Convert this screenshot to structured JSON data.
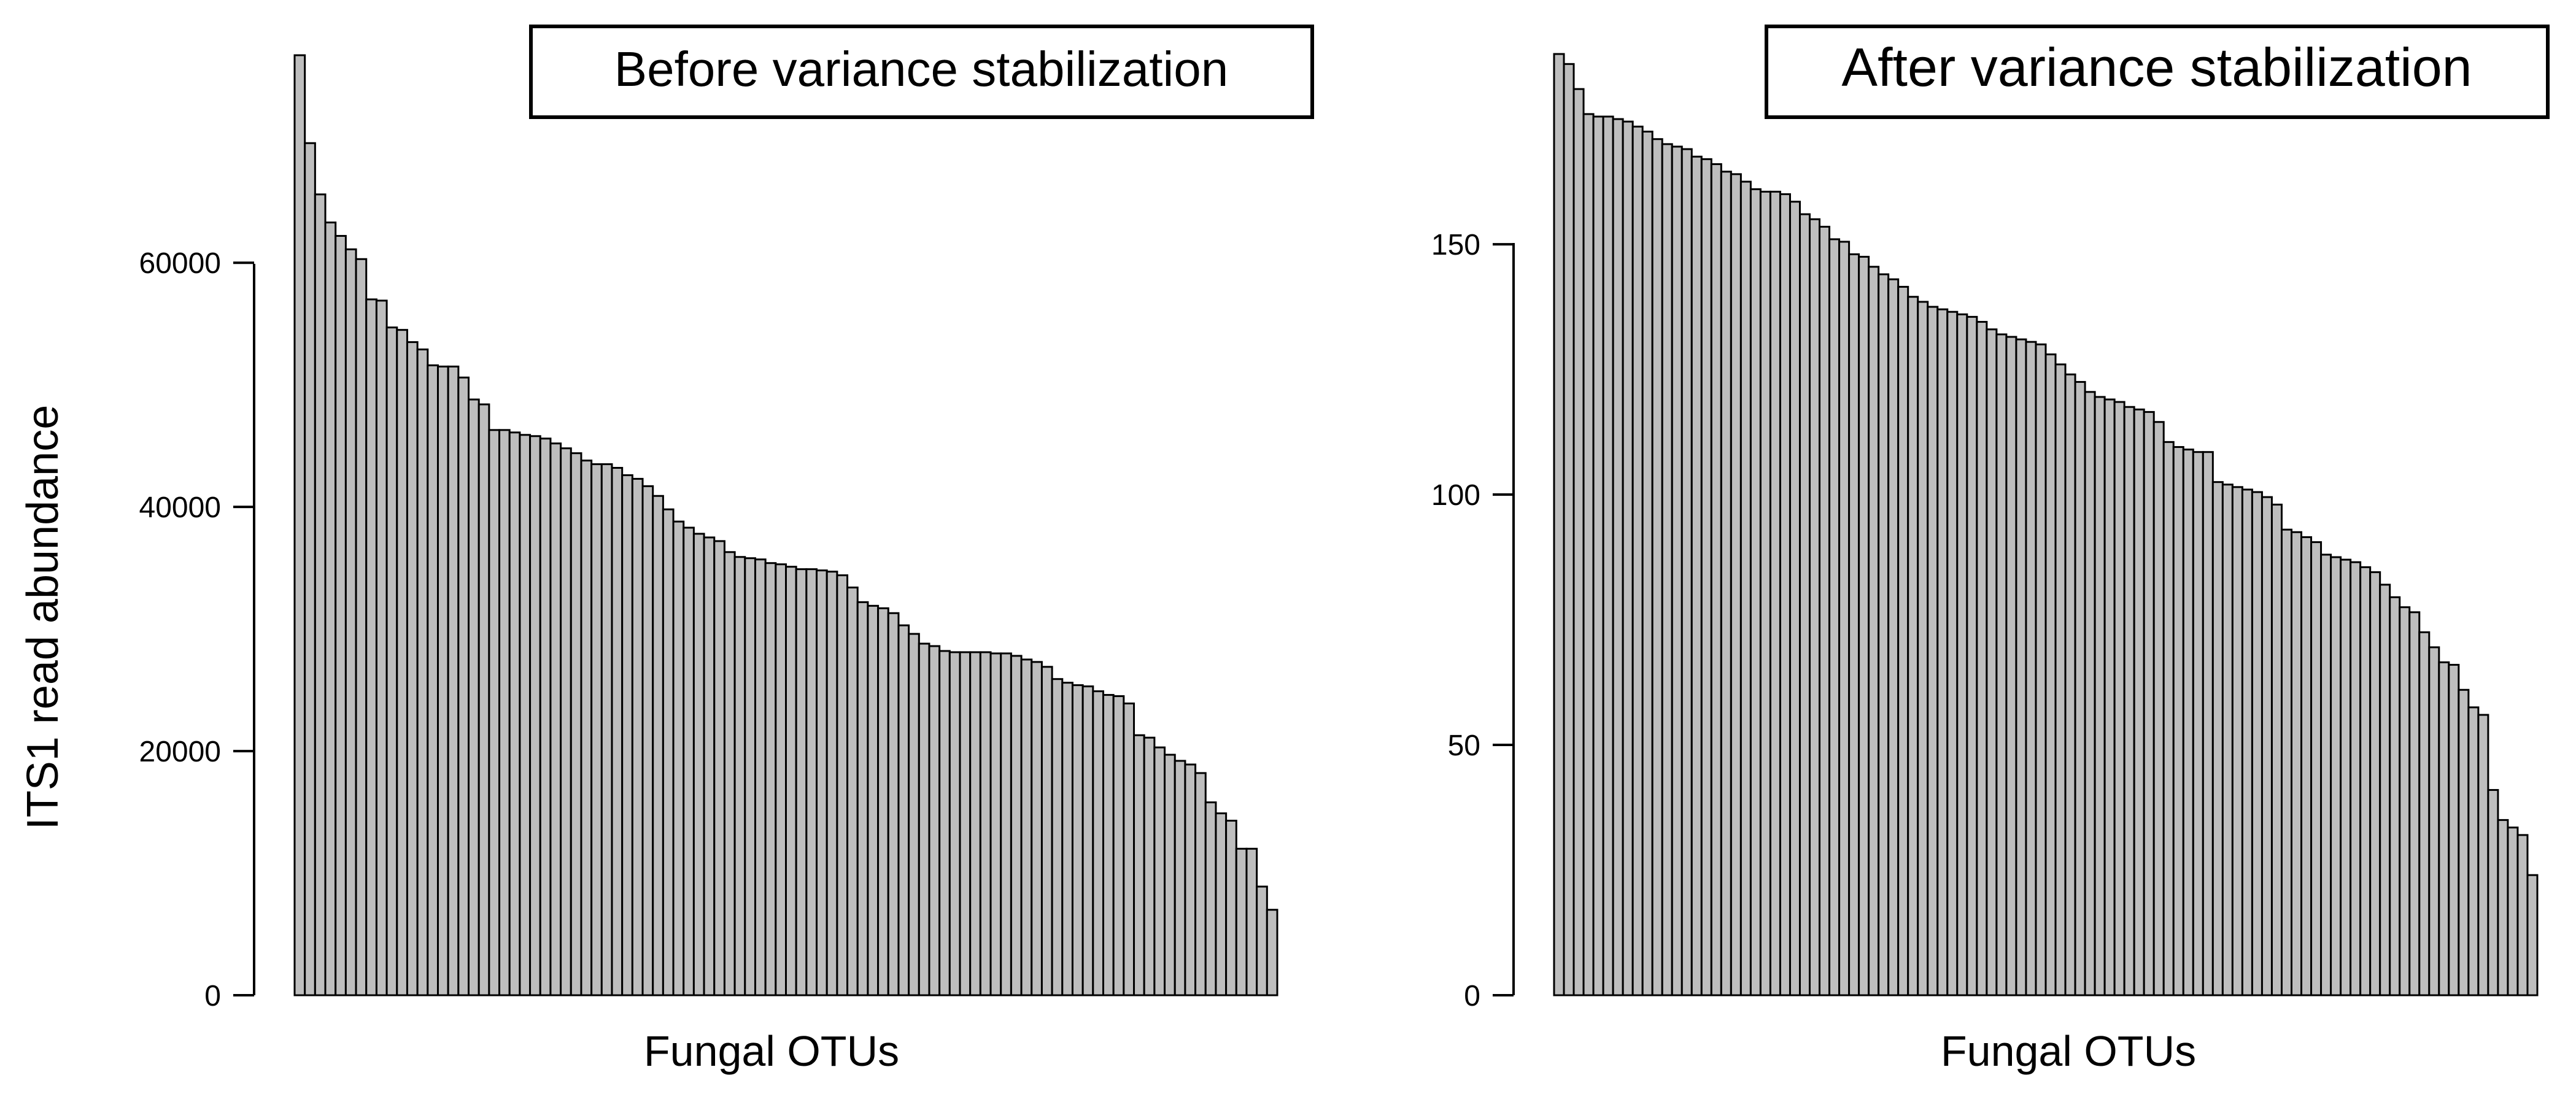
{
  "figure": {
    "ylabel": "ITS1 read abundance"
  },
  "chart_data": [
    {
      "type": "bar",
      "title": "Before variance stabilization",
      "xlabel": "Fungal OTUs",
      "ylabel": "ITS1 read abundance",
      "ylim": [
        0,
        77000
      ],
      "yticks": [
        0,
        20000,
        40000,
        60000
      ],
      "grid": false,
      "bar_color": "#bebebe",
      "values": [
        77000,
        69800,
        65600,
        63300,
        62200,
        61100,
        60300,
        57000,
        56900,
        54700,
        54500,
        53500,
        52900,
        51600,
        51500,
        51500,
        50600,
        48800,
        48400,
        46300,
        46300,
        46100,
        45900,
        45800,
        45600,
        45200,
        44800,
        44400,
        43800,
        43500,
        43500,
        43200,
        42600,
        42300,
        41700,
        40900,
        39800,
        38800,
        38300,
        37800,
        37500,
        37200,
        36300,
        35900,
        35800,
        35700,
        35400,
        35300,
        35100,
        34900,
        34900,
        34800,
        34700,
        34400,
        33400,
        32200,
        31900,
        31700,
        31300,
        30300,
        29600,
        28800,
        28600,
        28200,
        28100,
        28100,
        28100,
        28100,
        28000,
        28000,
        27800,
        27500,
        27300,
        26900,
        25900,
        25600,
        25400,
        25300,
        24900,
        24600,
        24500,
        23900,
        21300,
        21100,
        20300,
        19700,
        19200,
        18900,
        18200,
        15800,
        14900,
        14300,
        12000,
        12000,
        8900,
        7000
      ]
    },
    {
      "type": "bar",
      "title": "After variance stabilization",
      "xlabel": "Fungal OTUs",
      "ylabel": "",
      "ylim": [
        0,
        188
      ],
      "yticks": [
        0,
        50,
        100,
        150
      ],
      "grid": false,
      "bar_color": "#bebebe",
      "values": [
        188,
        186,
        181,
        176,
        175.5,
        175.5,
        175,
        174.5,
        173.5,
        172.5,
        171,
        170,
        169.5,
        169,
        167.5,
        167,
        166,
        164.5,
        164,
        162.5,
        161,
        160.5,
        160.5,
        160,
        158.5,
        156,
        155,
        153.5,
        151,
        150.5,
        148,
        147.5,
        145.5,
        144,
        143,
        141.5,
        139.5,
        138.5,
        137.5,
        137,
        136.5,
        136,
        135.5,
        134.5,
        133,
        132,
        131.5,
        131,
        130.5,
        130,
        128,
        126,
        124,
        122.5,
        120.5,
        119.5,
        119,
        118.5,
        117.5,
        117,
        116.5,
        114.5,
        110.5,
        109.5,
        109,
        108.5,
        108.5,
        102.5,
        102,
        101.5,
        101,
        100.5,
        99.5,
        98,
        93,
        92.5,
        91.5,
        90.5,
        88,
        87.5,
        87,
        86.5,
        85.5,
        84.5,
        82,
        79.5,
        77.5,
        76.5,
        72.5,
        69.5,
        66.5,
        66,
        61,
        57.5,
        56,
        41,
        35,
        33.5,
        32,
        24
      ]
    }
  ]
}
